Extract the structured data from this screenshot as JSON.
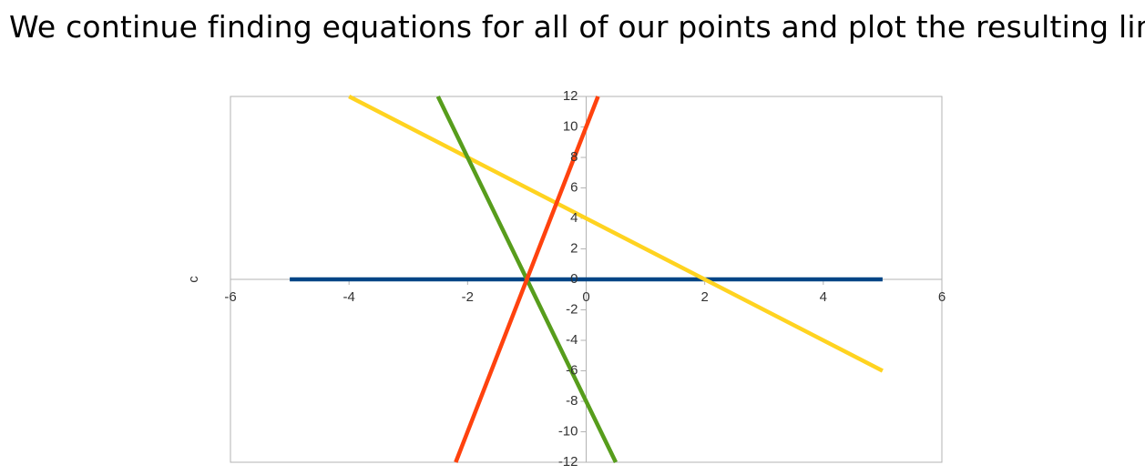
{
  "heading": "We continue finding equations for all of our points and plot the resulting lines:",
  "chart_data": {
    "type": "line",
    "title": "",
    "xlabel": "",
    "ylabel": "c",
    "xlim": [
      -6,
      6
    ],
    "ylim": [
      -12,
      12
    ],
    "grid": false,
    "legend": "none",
    "x_ticks": [
      -6,
      -4,
      -2,
      0,
      2,
      4,
      6
    ],
    "y_ticks": [
      -12,
      -10,
      -8,
      -6,
      -4,
      -2,
      0,
      2,
      4,
      6,
      8,
      10,
      12
    ],
    "series": [
      {
        "color": "#004586",
        "x": [
          -5,
          5
        ],
        "y": [
          0,
          0
        ]
      },
      {
        "color": "#ffd320",
        "x": [
          -4,
          5
        ],
        "y": [
          12,
          -6
        ]
      },
      {
        "color": "#579d1c",
        "x": [
          -2.5,
          0.5
        ],
        "y": [
          12,
          -12
        ]
      },
      {
        "color": "#ff420e",
        "x": [
          -2.2,
          0.2
        ],
        "y": [
          -12,
          12
        ]
      }
    ]
  }
}
